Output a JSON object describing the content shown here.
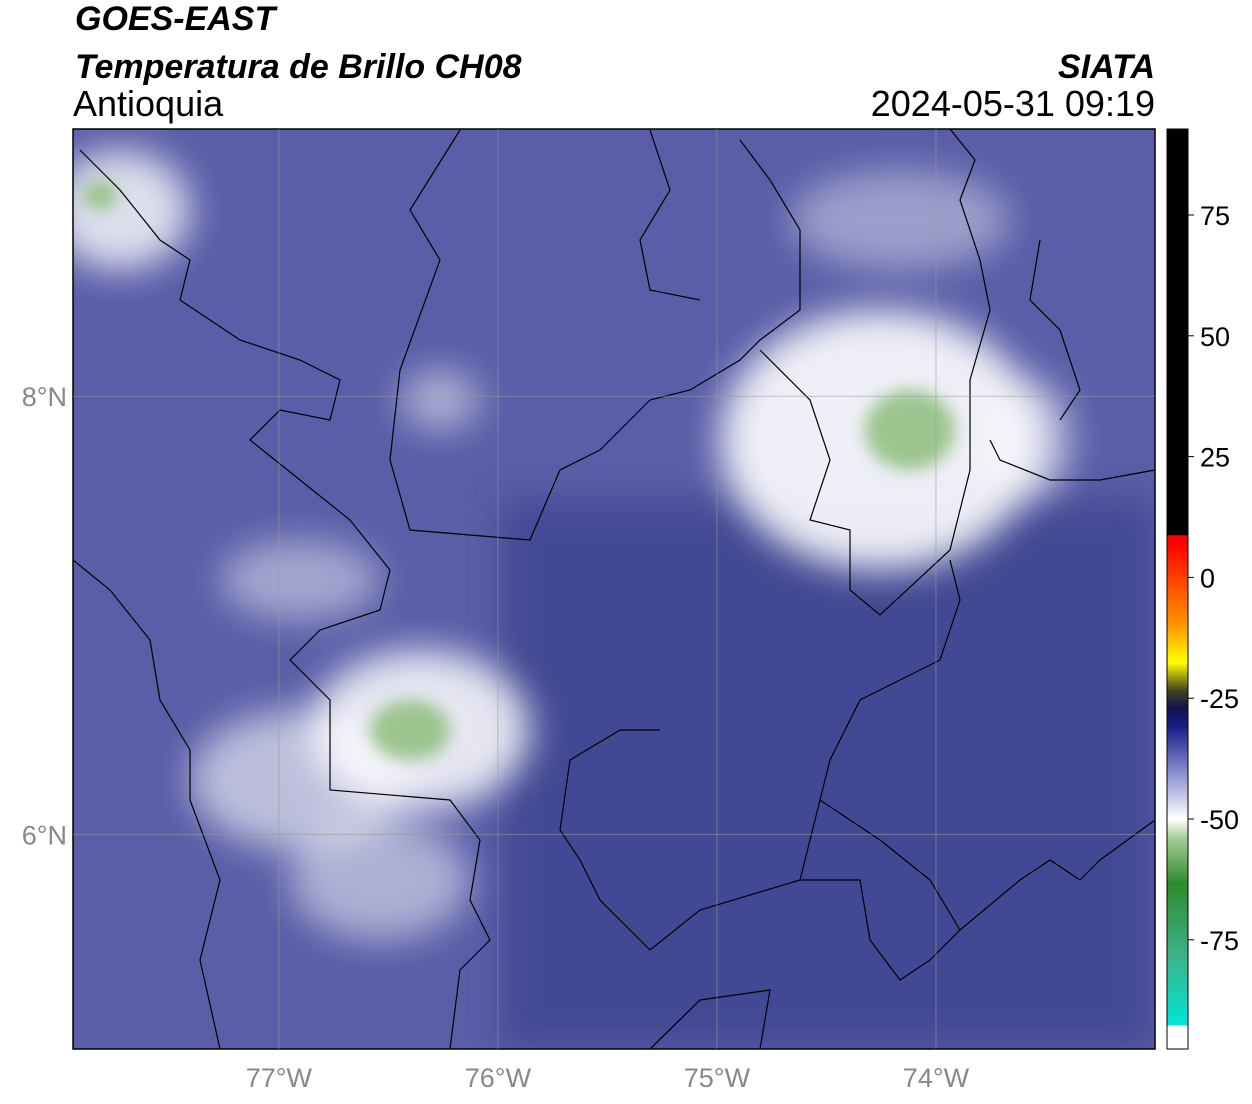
{
  "header": {
    "title": "GOES-EAST",
    "subtitle": "Temperatura de Brillo CH08",
    "region": "Antioquia",
    "source": "SIATA",
    "timestamp": "2024-05-31 09:19"
  },
  "map": {
    "xlim": [
      -77.94,
      -73.0
    ],
    "ylim": [
      5.02,
      9.22
    ],
    "lon_ticks": [
      {
        "value": -77,
        "label": "77°W"
      },
      {
        "value": -76,
        "label": "76°W"
      },
      {
        "value": -75,
        "label": "75°W"
      },
      {
        "value": -74,
        "label": "74°W"
      }
    ],
    "lat_ticks": [
      {
        "value": 8,
        "label": "8°N"
      },
      {
        "value": 6,
        "label": "6°N"
      }
    ]
  },
  "colorbar": {
    "lim": [
      -97.6,
      92.8
    ],
    "ticks": [
      75,
      50,
      25,
      0,
      -25,
      -50,
      -75
    ]
  }
}
